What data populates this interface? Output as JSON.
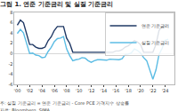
{
  "chart_data": {
    "type": "line",
    "title": "그림 1. 연준 기준금리 및 실질 기준금리",
    "annotations": [
      "주: 실질 기준금리 = 연준 기준금리 - Core PCE 가격지수 상승률",
      "자료: Bloomberg, SIMA"
    ],
    "x": [
      2000.0,
      2000.5,
      2001.0,
      2001.5,
      2002.0,
      2002.5,
      2003.0,
      2003.5,
      2004.0,
      2004.5,
      2005.0,
      2005.5,
      2006.0,
      2006.5,
      2007.0,
      2007.5,
      2008.0,
      2008.5,
      2009.0,
      2009.5,
      2010.0,
      2010.5,
      2011.0,
      2011.5,
      2012.0,
      2012.5,
      2013.0,
      2013.5,
      2014.0,
      2014.5,
      2015.0,
      2015.5,
      2016.0,
      2016.5,
      2017.0,
      2017.5,
      2018.0,
      2018.5,
      2019.0,
      2019.5,
      2020.0,
      2020.5,
      2021.0,
      2021.5,
      2022.0,
      2022.5,
      2023.0,
      2023.5,
      2024.0,
      2024.5
    ],
    "series": [
      {
        "name": "연준 기준금리",
        "color": "#1f3864",
        "values": [
          5.5,
          6.5,
          6.0,
          3.75,
          1.75,
          1.75,
          1.25,
          1.0,
          1.0,
          1.25,
          2.5,
          3.25,
          4.5,
          5.25,
          5.25,
          5.25,
          3.0,
          2.0,
          0.25,
          0.25,
          0.25,
          0.25,
          0.25,
          0.25,
          0.25,
          0.25,
          0.25,
          0.25,
          0.25,
          0.25,
          0.25,
          0.25,
          0.5,
          0.5,
          0.75,
          1.25,
          1.5,
          2.0,
          2.5,
          2.25,
          1.75,
          0.25,
          0.25,
          0.25,
          0.25,
          1.75,
          4.5,
          5.25,
          5.5,
          5.5
        ]
      },
      {
        "name": "실질 기준금리",
        "color": "#5bbce4",
        "values": [
          3.9,
          4.7,
          4.0,
          1.75,
          0.0,
          0.1,
          -0.3,
          -0.4,
          -0.8,
          -0.7,
          0.4,
          1.2,
          2.3,
          2.9,
          3.0,
          3.3,
          0.9,
          -0.4,
          -1.4,
          -1.2,
          -1.1,
          -0.8,
          -0.9,
          -1.4,
          -1.7,
          -1.4,
          -1.2,
          -1.2,
          -1.3,
          -1.3,
          -1.1,
          -1.1,
          -1.2,
          -1.2,
          -1.0,
          -0.2,
          -0.1,
          0.1,
          0.9,
          0.6,
          0.1,
          -0.8,
          -1.4,
          -3.4,
          -5.0,
          -3.2,
          -0.2,
          1.0,
          2.6,
          2.8
        ]
      }
    ],
    "xlim": [
      1999.5,
      2025.5
    ],
    "xticks": [
      {
        "value": 2000,
        "label": "'00"
      },
      {
        "value": 2002,
        "label": "'02"
      },
      {
        "value": 2004,
        "label": "'04"
      },
      {
        "value": 2006,
        "label": "'06"
      },
      {
        "value": 2008,
        "label": "'08"
      },
      {
        "value": 2010,
        "label": "'10"
      },
      {
        "value": 2012,
        "label": "'12"
      },
      {
        "value": 2014,
        "label": "'14"
      },
      {
        "value": 2016,
        "label": "'16"
      },
      {
        "value": 2018,
        "label": "'18"
      },
      {
        "value": 2020,
        "label": "'20"
      },
      {
        "value": 2022,
        "label": "'22"
      },
      {
        "value": 2024,
        "label": "'24"
      }
    ],
    "ylim": [
      -6,
      8
    ],
    "yticks": [
      -6,
      -4,
      -2,
      0,
      2,
      4,
      6,
      8
    ],
    "grid": false,
    "legend": "upper right"
  }
}
